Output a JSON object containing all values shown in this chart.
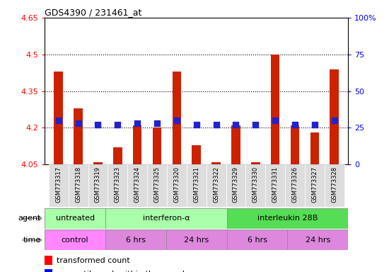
{
  "title": "GDS4390 / 231461_at",
  "samples": [
    "GSM773317",
    "GSM773318",
    "GSM773319",
    "GSM773323",
    "GSM773324",
    "GSM773325",
    "GSM773320",
    "GSM773321",
    "GSM773322",
    "GSM773329",
    "GSM773330",
    "GSM773331",
    "GSM773326",
    "GSM773327",
    "GSM773328"
  ],
  "red_values": [
    4.43,
    4.28,
    4.06,
    4.12,
    4.21,
    4.2,
    4.43,
    4.13,
    4.06,
    4.21,
    4.06,
    4.5,
    4.21,
    4.18,
    4.44
  ],
  "blue_values": [
    30,
    28,
    27,
    27,
    28,
    28,
    30,
    27,
    27,
    27,
    27,
    30,
    27,
    27,
    30
  ],
  "y_min": 4.05,
  "y_max": 4.65,
  "y_ticks": [
    4.05,
    4.2,
    4.35,
    4.5,
    4.65
  ],
  "y_right_ticks": [
    0,
    25,
    50,
    75,
    100
  ],
  "y_right_labels": [
    "0",
    "25",
    "50",
    "75",
    "100%"
  ],
  "dotted_lines": [
    4.5,
    4.35,
    4.2
  ],
  "agent_groups": [
    {
      "label": "untreated",
      "start": 0,
      "end": 3,
      "color": "#aaffaa"
    },
    {
      "label": "interferon-α",
      "start": 3,
      "end": 9,
      "color": "#aaffaa"
    },
    {
      "label": "interleukin 28B",
      "start": 9,
      "end": 15,
      "color": "#55dd55"
    }
  ],
  "time_groups": [
    {
      "label": "control",
      "start": 0,
      "end": 3,
      "color": "#ff99ff"
    },
    {
      "label": "6 hrs",
      "start": 3,
      "end": 6,
      "color": "#ee88ee"
    },
    {
      "label": "24 hrs",
      "start": 6,
      "end": 9,
      "color": "#ee88ee"
    },
    {
      "label": "6 hrs",
      "start": 9,
      "end": 12,
      "color": "#ee88ee"
    },
    {
      "label": "24 hrs",
      "start": 12,
      "end": 15,
      "color": "#ee88ee"
    }
  ],
  "bar_color": "#cc2200",
  "dot_color": "#2222cc",
  "bar_bottom": 4.05,
  "bar_width": 0.45,
  "dot_size": 35,
  "background_color": "#ffffff",
  "plot_bg_color": "#ffffff",
  "label_bg_color": "#dddddd"
}
